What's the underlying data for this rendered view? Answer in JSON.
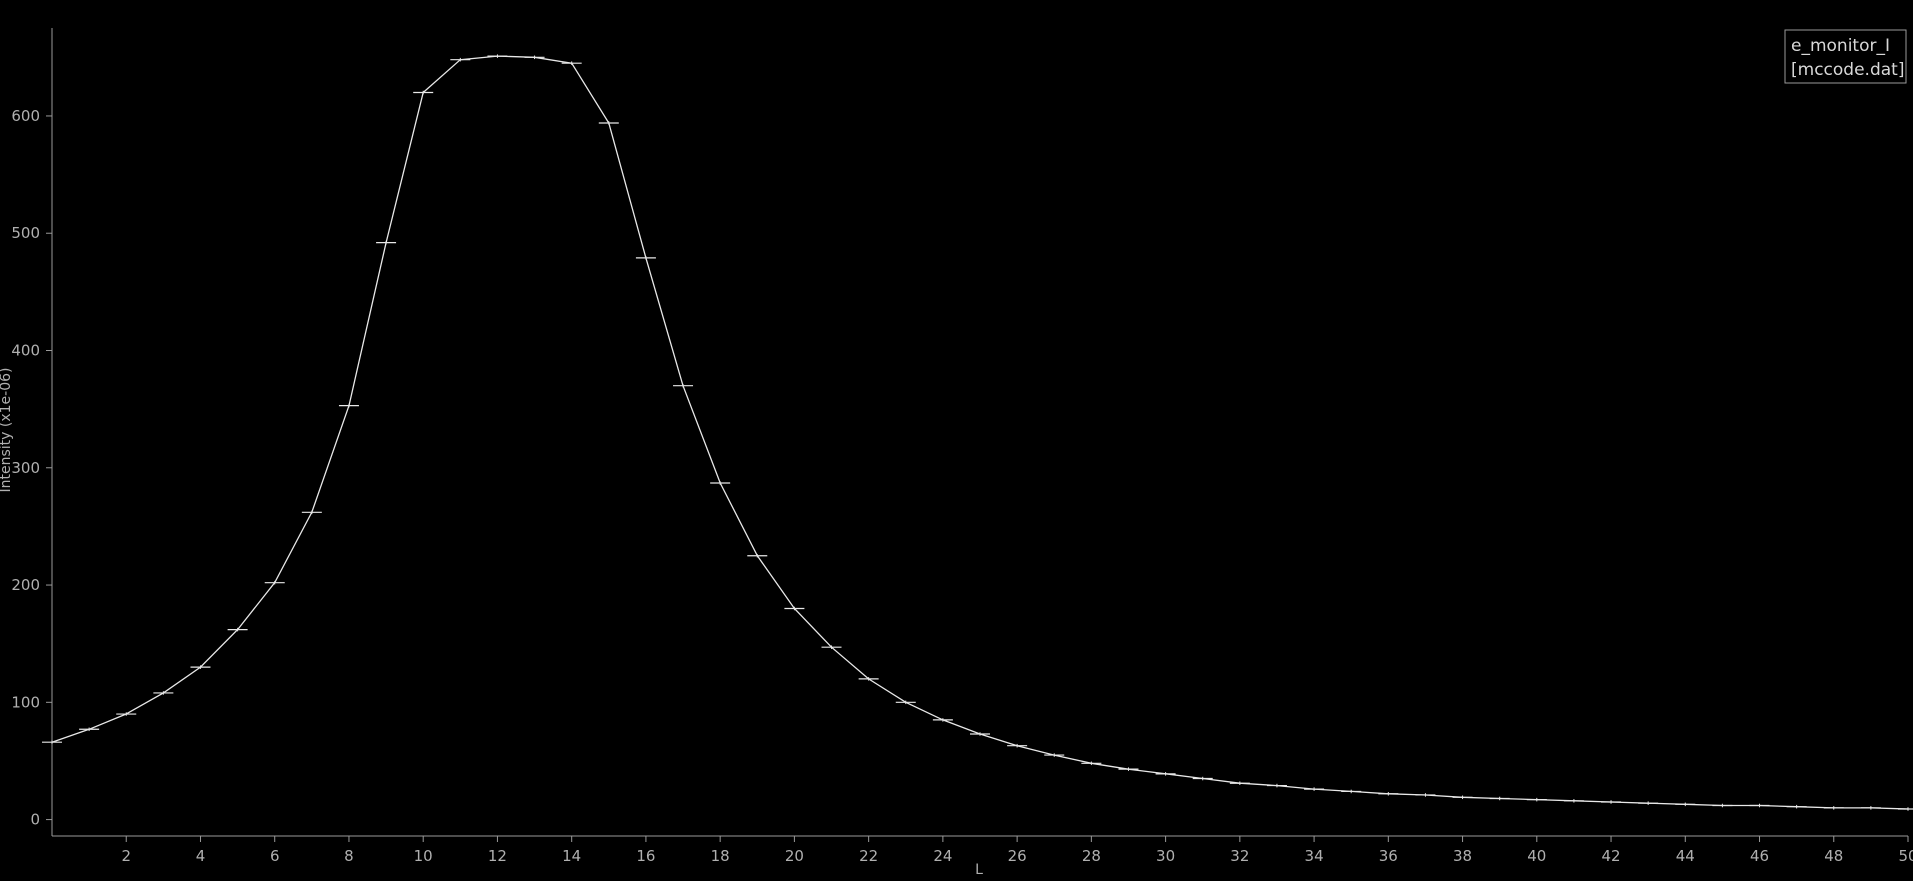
{
  "chart_data": {
    "type": "line",
    "title": "",
    "xlabel": "L",
    "ylabel": "Intensity (x1e-06)",
    "xlim": [
      0,
      50
    ],
    "ylim": [
      -14,
      675
    ],
    "xticks": [
      2,
      4,
      6,
      8,
      10,
      12,
      14,
      16,
      18,
      20,
      22,
      24,
      26,
      28,
      30,
      32,
      34,
      36,
      38,
      40,
      42,
      44,
      46,
      48,
      50
    ],
    "yticks": [
      0,
      100,
      200,
      300,
      400,
      500,
      600
    ],
    "grid": false,
    "legend": {
      "placement": "top-right",
      "entries": [
        "e_monitor_I",
        "[mccode.dat]"
      ]
    },
    "colors": {
      "background": "#000000",
      "line": "#e8e8e8",
      "axis": "#9a9a9a"
    },
    "series": [
      {
        "x": [
          0.0,
          1.0,
          2.0,
          3.0,
          4.0,
          5.0,
          6.0,
          7.0,
          8.0,
          9.0,
          10.0,
          11.0,
          12.0,
          13.0,
          14.0,
          15.0,
          16.0,
          17.0,
          18.0,
          19.0,
          20.0,
          21.0,
          22.0,
          23.0,
          24.0,
          25.0,
          26.0,
          27.0,
          28.0,
          29.0,
          30.0,
          31.0,
          32.0,
          33.0,
          34.0,
          35.0,
          36.0,
          37.0,
          38.0,
          39.0,
          40.0,
          41.0,
          42.0,
          43.0,
          44.0,
          45.0,
          46.0,
          47.0,
          48.0,
          49.0,
          50.0
        ],
        "y": [
          66,
          77,
          90,
          108,
          130,
          162,
          202,
          262,
          353,
          492,
          620,
          648,
          651,
          650,
          645,
          594,
          479,
          370,
          287,
          225,
          180,
          147,
          120,
          100,
          85,
          73,
          63,
          55,
          48,
          43,
          39,
          35,
          31,
          29,
          26,
          24,
          22,
          21,
          19,
          18,
          17,
          16,
          15,
          14,
          13,
          12,
          12,
          11,
          10,
          10,
          9
        ],
        "errors": [
          1.5,
          1.5,
          1.5,
          1.5,
          1.5,
          1.5,
          1.5,
          1.5,
          1.5,
          1.5,
          1.5,
          1.5,
          1.5,
          1.5,
          1.5,
          1.5,
          1.5,
          1.5,
          1.5,
          1.5,
          1.5,
          1.5,
          1.5,
          1.5,
          1.5,
          1.5,
          1.5,
          1.5,
          1.5,
          1.5,
          1.5,
          1.5,
          1.5,
          1.5,
          1.5,
          1.5,
          1.5,
          1.5,
          1.5,
          1.5,
          1.5,
          1.5,
          1.5,
          1.5,
          1.5,
          1.5,
          1.5,
          1.5,
          1.5,
          1.5,
          1.5
        ]
      }
    ]
  }
}
